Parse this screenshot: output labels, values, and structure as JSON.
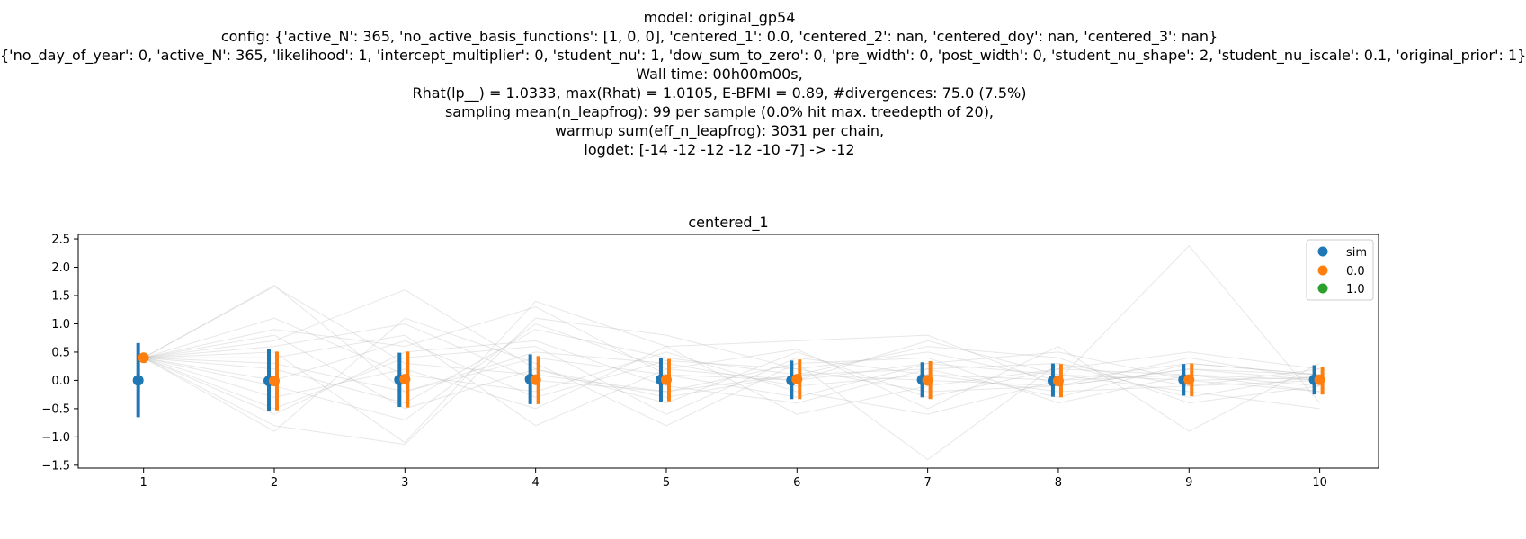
{
  "header": {
    "lines": [
      "model: original_gp54",
      "config: {'active_N': 365, 'no_active_basis_functions': [1, 0, 0], 'centered_1': 0.0, 'centered_2': nan, 'centered_doy': nan, 'centered_3': nan}",
      "{'no_day_of_year': 0, 'active_N': 365, 'likelihood': 1, 'intercept_multiplier': 0, 'student_nu': 1, 'dow_sum_to_zero': 0, 'pre_width': 0, 'post_width': 0, 'student_nu_shape': 2, 'student_nu_iscale': 0.1, 'original_prior': 1}",
      "Wall time: 00h00m00s,",
      "Rhat(lp__) = 1.0333, max(Rhat) = 1.0105, E-BFMI = 0.89, #divergences: 75.0 (7.5%)",
      "sampling mean(n_leapfrog): 99 per sample (0.0% hit max. treedepth of 20),",
      "warmup sum(eff_n_leapfrog): 3031 per chain,",
      "logdet: [-14 -12 -12 -12 -10  -7] -> -12"
    ]
  },
  "chart_data": {
    "type": "scatter",
    "title": "centered_1",
    "xlabel": "",
    "ylabel": "",
    "x": [
      1,
      2,
      3,
      4,
      5,
      6,
      7,
      8,
      9,
      10
    ],
    "xlim": [
      0.5,
      10.45
    ],
    "ylim": [
      -1.55,
      2.58
    ],
    "xticks": [
      "1",
      "2",
      "3",
      "4",
      "5",
      "6",
      "7",
      "8",
      "9",
      "10"
    ],
    "yticks": [
      "2.5",
      "2.0",
      "1.5",
      "1.0",
      "0.5",
      "0.0",
      "−0.5",
      "−1.0",
      "−1.5"
    ],
    "ytick_values": [
      2.5,
      2.0,
      1.5,
      1.0,
      0.5,
      0.0,
      -0.5,
      -1.0,
      -1.5
    ],
    "grid": false,
    "legend_position": "top-right",
    "series": [
      {
        "name": "sim",
        "color": "#1f77b4",
        "mean": [
          0.0,
          -0.01,
          0.01,
          0.02,
          0.01,
          0.0,
          0.01,
          -0.01,
          0.01,
          0.01
        ],
        "lower": [
          -0.65,
          -0.55,
          -0.47,
          -0.42,
          -0.38,
          -0.33,
          -0.3,
          -0.29,
          -0.27,
          -0.25
        ],
        "upper": [
          0.66,
          0.55,
          0.49,
          0.46,
          0.4,
          0.35,
          0.32,
          0.3,
          0.29,
          0.27
        ]
      },
      {
        "name": "0.0",
        "color": "#ff7f0e",
        "mean": [
          0.4,
          -0.01,
          0.02,
          0.01,
          0.01,
          0.02,
          0.0,
          -0.01,
          0.01,
          0.01
        ],
        "lower": [
          0.4,
          -0.53,
          -0.48,
          -0.42,
          -0.37,
          -0.33,
          -0.33,
          -0.3,
          -0.28,
          -0.25
        ],
        "upper": [
          0.4,
          0.51,
          0.51,
          0.43,
          0.38,
          0.37,
          0.34,
          0.29,
          0.3,
          0.24
        ]
      },
      {
        "name": "1.0",
        "color": "#2ca02c",
        "mean": [],
        "lower": [],
        "upper": []
      }
    ],
    "sample_lines_color": "#bbbbbb",
    "sample_lines": [
      [
        0.4,
        1.66,
        0.3,
        0.1,
        -0.2,
        0.1,
        0.0,
        -0.1,
        0.2,
        0.0
      ],
      [
        0.4,
        1.68,
        -0.2,
        0.5,
        0.3,
        -0.1,
        0.1,
        0.0,
        0.1,
        -0.1
      ],
      [
        0.4,
        0.9,
        0.6,
        1.3,
        0.1,
        0.0,
        0.3,
        0.1,
        0.0,
        0.05
      ],
      [
        0.4,
        0.7,
        1.6,
        0.2,
        -0.4,
        0.5,
        -0.3,
        0.2,
        0.1,
        -0.2
      ],
      [
        0.4,
        0.5,
        -1.1,
        1.4,
        0.6,
        0.7,
        0.8,
        -0.1,
        0.2,
        0.1
      ],
      [
        0.4,
        -0.9,
        1.1,
        0.3,
        -0.8,
        0.3,
        -1.4,
        0.3,
        -0.1,
        0.0
      ],
      [
        0.4,
        -0.8,
        -1.13,
        1.1,
        0.8,
        0.2,
        0.5,
        0.0,
        2.38,
        -0.4
      ],
      [
        0.4,
        0.4,
        0.8,
        -0.8,
        0.2,
        0.55,
        -0.5,
        0.6,
        -0.9,
        0.3
      ],
      [
        0.4,
        -0.6,
        0.5,
        0.7,
        -0.1,
        -0.4,
        0.2,
        -0.3,
        0.3,
        0.1
      ],
      [
        0.4,
        0.2,
        -0.4,
        0.9,
        0.4,
        0.1,
        0.6,
        0.4,
        -0.4,
        -0.1
      ],
      [
        0.4,
        -0.3,
        0.2,
        -0.5,
        0.6,
        -0.6,
        -0.1,
        0.2,
        0.5,
        0.2
      ],
      [
        0.4,
        0.6,
        1.0,
        0.0,
        -0.2,
        0.3,
        0.4,
        -0.4,
        0.1,
        0.0
      ],
      [
        0.4,
        -0.1,
        -0.7,
        1.0,
        0.2,
        0.0,
        0.7,
        0.1,
        -0.2,
        -0.5
      ],
      [
        0.4,
        1.1,
        0.1,
        -0.2,
        0.5,
        -0.2,
        -0.6,
        0.0,
        0.3,
        0.1
      ],
      [
        0.4,
        -0.5,
        0.4,
        0.6,
        -0.6,
        0.4,
        0.1,
        -0.2,
        -0.1,
        0.2
      ],
      [
        0.4,
        0.3,
        -0.2,
        0.4,
        0.1,
        -0.3,
        0.3,
        0.5,
        0.0,
        -0.2
      ],
      [
        0.4,
        0.0,
        0.7,
        -0.3,
        0.35,
        0.2,
        -0.2,
        -0.1,
        0.4,
        0.0
      ],
      [
        0.4,
        0.8,
        -0.5,
        0.2,
        -0.3,
        0.1,
        0.2,
        0.3,
        -0.3,
        0.1
      ]
    ]
  }
}
